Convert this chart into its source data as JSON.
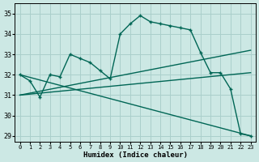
{
  "xlabel": "Humidex (Indice chaleur)",
  "xlim": [
    -0.5,
    23.5
  ],
  "ylim": [
    28.7,
    35.5
  ],
  "yticks": [
    29,
    30,
    31,
    32,
    33,
    34,
    35
  ],
  "xticks": [
    0,
    1,
    2,
    3,
    4,
    5,
    6,
    7,
    8,
    9,
    10,
    11,
    12,
    13,
    14,
    15,
    16,
    17,
    18,
    19,
    20,
    21,
    22,
    23
  ],
  "bg_color": "#cce8e4",
  "grid_color": "#aacfcb",
  "line_color": "#006655",
  "series_main_x": [
    0,
    1,
    2,
    3,
    4,
    5,
    6,
    7,
    8,
    9,
    10,
    11,
    12,
    13,
    14,
    15,
    16,
    17,
    18,
    19,
    20,
    21,
    22,
    23
  ],
  "series_main_y": [
    32.0,
    31.7,
    30.9,
    32.0,
    31.9,
    33.0,
    32.8,
    32.6,
    32.2,
    31.8,
    34.0,
    34.5,
    34.9,
    34.6,
    34.5,
    34.4,
    34.3,
    34.2,
    33.1,
    32.1,
    32.1,
    31.3,
    29.1,
    29.0
  ],
  "series_line1_x": [
    0,
    23
  ],
  "series_line1_y": [
    32.0,
    29.0
  ],
  "series_line2_x": [
    0,
    23
  ],
  "series_line2_y": [
    31.0,
    32.1
  ],
  "series_line3_x": [
    0,
    23
  ],
  "series_line3_y": [
    31.0,
    33.2
  ]
}
